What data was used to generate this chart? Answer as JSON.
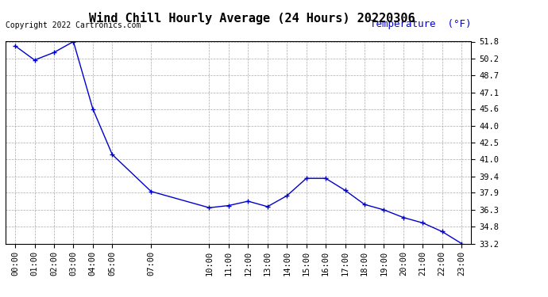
{
  "title": "Wind Chill Hourly Average (24 Hours) 20220306",
  "ylabel": "Temperature  (°F)",
  "copyright_text": "Copyright 2022 Cartronics.com",
  "line_color": "#0000cc",
  "background_color": "#ffffff",
  "grid_color": "#aaaaaa",
  "hours": [
    0,
    1,
    2,
    3,
    4,
    5,
    7,
    10,
    11,
    12,
    13,
    14,
    15,
    16,
    17,
    18,
    19,
    20,
    21,
    22,
    23
  ],
  "values": [
    51.4,
    50.1,
    50.8,
    51.8,
    45.6,
    41.4,
    38.0,
    36.5,
    36.7,
    37.1,
    36.6,
    37.6,
    39.2,
    39.2,
    38.1,
    36.8,
    36.3,
    35.6,
    35.1,
    34.3,
    33.2
  ],
  "yticks": [
    51.8,
    50.2,
    48.7,
    47.1,
    45.6,
    44.0,
    42.5,
    41.0,
    39.4,
    37.9,
    36.3,
    34.8,
    33.2
  ],
  "xtick_hours": [
    0,
    1,
    2,
    3,
    4,
    5,
    7,
    10,
    11,
    12,
    13,
    14,
    15,
    16,
    17,
    18,
    19,
    20,
    21,
    22,
    23
  ],
  "ylim_min": 33.2,
  "ylim_max": 51.8,
  "title_fontsize": 11,
  "ylabel_fontsize": 9,
  "tick_fontsize": 7.5,
  "copyright_fontsize": 7
}
